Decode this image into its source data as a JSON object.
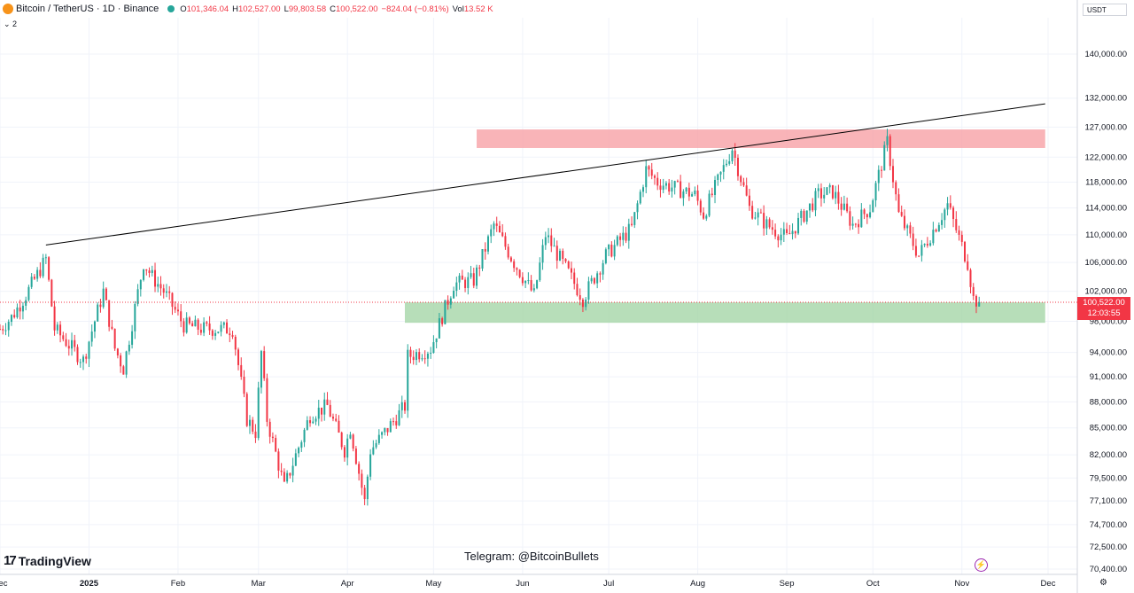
{
  "header": {
    "symbol": "Bitcoin / TetherUS · 1D · Binance",
    "o_label": "O",
    "o": "101,346.04",
    "h_label": "H",
    "h": "102,527.00",
    "l_label": "L",
    "l": "99,803.58",
    "c_label": "C",
    "c": "100,522.00",
    "change": "−824.04 (−0.81%)",
    "vol_label": "Vol",
    "vol": "13.52 K",
    "indicator_count": "2",
    "currency": "USDT"
  },
  "price_tag": {
    "price": "100,522.00",
    "countdown": "12:03:55"
  },
  "branding": {
    "logo": "TradingView",
    "logo_mark": "17"
  },
  "telegram": "Telegram: @BitcoinBullets",
  "colors": {
    "up": "#26a69a",
    "down": "#f23645",
    "resistance_zone": "#f7a1a6",
    "support_zone": "#a5d6a7",
    "trendline": "#000000"
  },
  "chart_data": {
    "type": "candlestick",
    "title": "Bitcoin / TetherUS · 1D · Binance",
    "xlabel": "",
    "ylabel": "",
    "y_scale": "log",
    "ylim": [
      70000,
      148000
    ],
    "xlim": [
      "2024-12-01",
      "2025-12-01"
    ],
    "y_ticks": [
      "140,000.00",
      "132,000.00",
      "127,000.00",
      "122,000.00",
      "118,000.00",
      "114,000.00",
      "110,000.00",
      "106,000.00",
      "102,000.00",
      "98,000.00",
      "94,000.00",
      "91,000.00",
      "88,000.00",
      "85,000.00",
      "82,000.00",
      "79,500.00",
      "77,100.00",
      "74,700.00",
      "72,500.00",
      "70,400.00"
    ],
    "x_ticks": [
      {
        "label": "Dec",
        "date": "2024-12-01"
      },
      {
        "label": "2025",
        "date": "2025-01-01"
      },
      {
        "label": "Feb",
        "date": "2025-02-01"
      },
      {
        "label": "Mar",
        "date": "2025-03-01"
      },
      {
        "label": "Apr",
        "date": "2025-04-01"
      },
      {
        "label": "May",
        "date": "2025-05-01"
      },
      {
        "label": "Jun",
        "date": "2025-06-01"
      },
      {
        "label": "Jul",
        "date": "2025-07-01"
      },
      {
        "label": "Aug",
        "date": "2025-08-01"
      },
      {
        "label": "Sep",
        "date": "2025-09-01"
      },
      {
        "label": "Oct",
        "date": "2025-10-01"
      },
      {
        "label": "Nov",
        "date": "2025-11-01"
      },
      {
        "label": "Dec",
        "date": "2025-12-01"
      }
    ],
    "close_path": [
      [
        "2024-12-01",
        97000
      ],
      [
        "2024-12-05",
        98500
      ],
      [
        "2024-12-10",
        101500
      ],
      [
        "2024-12-17",
        106500
      ],
      [
        "2024-12-20",
        97000
      ],
      [
        "2024-12-30",
        93000
      ],
      [
        "2025-01-06",
        102000
      ],
      [
        "2025-01-10",
        94500
      ],
      [
        "2025-01-13",
        92000
      ],
      [
        "2025-01-20",
        106000
      ],
      [
        "2025-01-23",
        104000
      ],
      [
        "2025-01-27",
        102000
      ],
      [
        "2025-02-03",
        97500
      ],
      [
        "2025-02-10",
        97000
      ],
      [
        "2025-02-20",
        97000
      ],
      [
        "2025-02-25",
        86000
      ],
      [
        "2025-02-28",
        84500
      ],
      [
        "2025-03-02",
        94000
      ],
      [
        "2025-03-04",
        86000
      ],
      [
        "2025-03-10",
        78500
      ],
      [
        "2025-03-19",
        86500
      ],
      [
        "2025-03-25",
        87500
      ],
      [
        "2025-03-31",
        82500
      ],
      [
        "2025-04-02",
        85000
      ],
      [
        "2025-04-07",
        77000
      ],
      [
        "2025-04-09",
        82500
      ],
      [
        "2025-04-14",
        84500
      ],
      [
        "2025-04-21",
        87500
      ],
      [
        "2025-04-22",
        93500
      ],
      [
        "2025-04-30",
        94500
      ],
      [
        "2025-05-08",
        103000
      ],
      [
        "2025-05-15",
        103500
      ],
      [
        "2025-05-22",
        111500
      ],
      [
        "2025-05-29",
        106000
      ],
      [
        "2025-06-05",
        101500
      ],
      [
        "2025-06-09",
        110000
      ],
      [
        "2025-06-17",
        104500
      ],
      [
        "2025-06-22",
        101000
      ],
      [
        "2025-06-30",
        107000
      ],
      [
        "2025-07-09",
        111000
      ],
      [
        "2025-07-14",
        120000
      ],
      [
        "2025-07-18",
        118000
      ],
      [
        "2025-07-31",
        116000
      ],
      [
        "2025-08-03",
        113000
      ],
      [
        "2025-08-13",
        123500
      ],
      [
        "2025-08-19",
        114000
      ],
      [
        "2025-08-25",
        111500
      ],
      [
        "2025-09-01",
        109500
      ],
      [
        "2025-09-12",
        116000
      ],
      [
        "2025-09-17",
        116500
      ],
      [
        "2025-09-24",
        111500
      ],
      [
        "2025-09-30",
        114000
      ],
      [
        "2025-10-06",
        124500
      ],
      [
        "2025-10-10",
        113000
      ],
      [
        "2025-10-17",
        107000
      ],
      [
        "2025-10-27",
        114500
      ],
      [
        "2025-10-31",
        109500
      ],
      [
        "2025-11-03",
        106000
      ],
      [
        "2025-11-05",
        101000
      ],
      [
        "2025-11-07",
        100522
      ]
    ],
    "trendline": {
      "start": [
        "2024-12-17",
        108500
      ],
      "end": [
        "2025-11-30",
        131000
      ]
    },
    "zones": [
      {
        "name": "resistance",
        "y_range": [
          123500,
          126600
        ],
        "x_range": [
          "2025-05-16",
          "2025-11-30"
        ]
      },
      {
        "name": "support",
        "y_range": [
          97800,
          100500
        ],
        "x_range": [
          "2025-04-21",
          "2025-11-30"
        ]
      }
    ],
    "last_price": 100522,
    "grid": true
  }
}
